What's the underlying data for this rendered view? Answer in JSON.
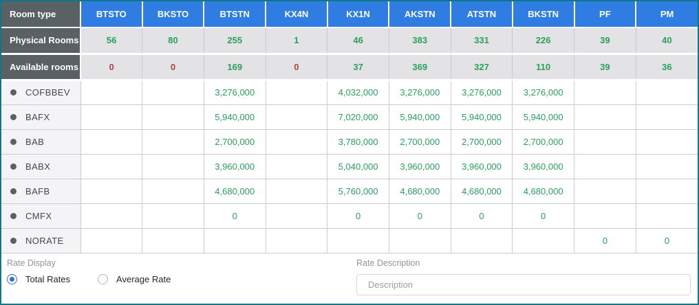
{
  "theme": {
    "frame_border": "#0f7787",
    "header_blue": "#2f7de2",
    "label_dark_gray": "#596165",
    "info_row_gray": "#e3e3e5",
    "positive_green": "#28a05c",
    "negative_red": "#b0423f"
  },
  "table": {
    "corner_label": "Room type",
    "columns": [
      "BTSTO",
      "BKSTO",
      "BTSTN",
      "KX4N",
      "KX1N",
      "AKSTN",
      "ATSTN",
      "BKSTN",
      "PF",
      "PM"
    ],
    "physical_rooms": {
      "label": "Physical Rooms",
      "values": [
        "56",
        "80",
        "255",
        "1",
        "46",
        "383",
        "331",
        "226",
        "39",
        "40"
      ]
    },
    "available_rooms": {
      "label": "Available rooms",
      "values": [
        "0",
        "0",
        "169",
        "0",
        "37",
        "369",
        "327",
        "110",
        "39",
        "36"
      ],
      "states": [
        "red",
        "red",
        "green",
        "red",
        "green",
        "green",
        "green",
        "green",
        "green",
        "green"
      ]
    },
    "rate_rows": [
      {
        "code": "COFBBEV",
        "values": [
          "",
          "",
          "3,276,000",
          "",
          "4,032,000",
          "3,276,000",
          "3,276,000",
          "3,276,000",
          "",
          ""
        ]
      },
      {
        "code": "BAFX",
        "values": [
          "",
          "",
          "5,940,000",
          "",
          "7,020,000",
          "5,940,000",
          "5,940,000",
          "5,940,000",
          "",
          ""
        ]
      },
      {
        "code": "BAB",
        "values": [
          "",
          "",
          "2,700,000",
          "",
          "3,780,000",
          "2,700,000",
          "2,700,000",
          "2,700,000",
          "",
          ""
        ]
      },
      {
        "code": "BABX",
        "values": [
          "",
          "",
          "3,960,000",
          "",
          "5,040,000",
          "3,960,000",
          "3,960,000",
          "3,960,000",
          "",
          ""
        ]
      },
      {
        "code": "BAFB",
        "values": [
          "",
          "",
          "4,680,000",
          "",
          "5,760,000",
          "4,680,000",
          "4,680,000",
          "4,680,000",
          "",
          ""
        ]
      },
      {
        "code": "CMFX",
        "values": [
          "",
          "",
          "0",
          "",
          "0",
          "0",
          "0",
          "0",
          "",
          ""
        ]
      },
      {
        "code": "NORATE",
        "values": [
          "",
          "",
          "",
          "",
          "",
          "",
          "",
          "",
          "0",
          "0"
        ]
      }
    ]
  },
  "footer": {
    "rate_display_label": "Rate Display",
    "radios": [
      {
        "label": "Total Rates",
        "selected": true
      },
      {
        "label": "Average Rate",
        "selected": false
      }
    ],
    "rate_description_label": "Rate Description",
    "description_placeholder": "Description"
  }
}
